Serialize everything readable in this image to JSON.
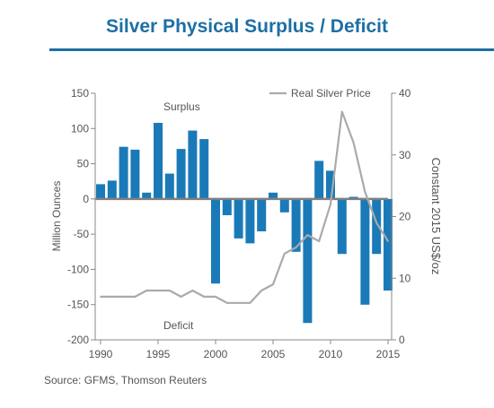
{
  "page": {
    "title": "Silver Physical Surplus / Deficit",
    "source": "Source: GFMS, Thomson Reuters"
  },
  "colors": {
    "title": "#1d6fa5",
    "bars": "#1a7ab8",
    "price_line": "#aaaaaa",
    "axis_text": "#555555"
  },
  "chart_data": {
    "type": "bar",
    "x": [
      1990,
      1991,
      1992,
      1993,
      1994,
      1995,
      1996,
      1997,
      1998,
      1999,
      2000,
      2001,
      2002,
      2003,
      2004,
      2005,
      2006,
      2007,
      2008,
      2009,
      2010,
      2011,
      2012,
      2013,
      2014,
      2015
    ],
    "series": [
      {
        "axis": "left",
        "chart_type": "bar",
        "values": [
          21,
          26,
          74,
          70,
          9,
          108,
          36,
          71,
          97,
          85,
          -120,
          -23,
          -56,
          -63,
          -46,
          9,
          -19,
          -75,
          -176,
          54,
          40,
          -78,
          3,
          -150,
          -78,
          -130
        ]
      },
      {
        "name": "Real Silver Price",
        "axis": "right",
        "chart_type": "line",
        "values": [
          7,
          7,
          7,
          7,
          8,
          8,
          8,
          7,
          8,
          7,
          7,
          6,
          6,
          6,
          8,
          9,
          14,
          15,
          17,
          16,
          22,
          37,
          32,
          24,
          19,
          16
        ]
      }
    ],
    "annotations": [
      "Surplus",
      "Deficit"
    ],
    "ylabel": "Million Ounces",
    "y2label": "Constant 2015 US$/oz",
    "ylim": [
      -200,
      150
    ],
    "y2lim": [
      0,
      40
    ],
    "xticks": [
      1990,
      1995,
      2000,
      2005,
      2010,
      2015
    ],
    "yticks": [
      150,
      100,
      50,
      0,
      -50,
      -100,
      -150,
      -200
    ],
    "y2ticks": [
      40,
      30,
      20,
      10,
      0
    ],
    "grid": false,
    "legend": "top-right"
  }
}
